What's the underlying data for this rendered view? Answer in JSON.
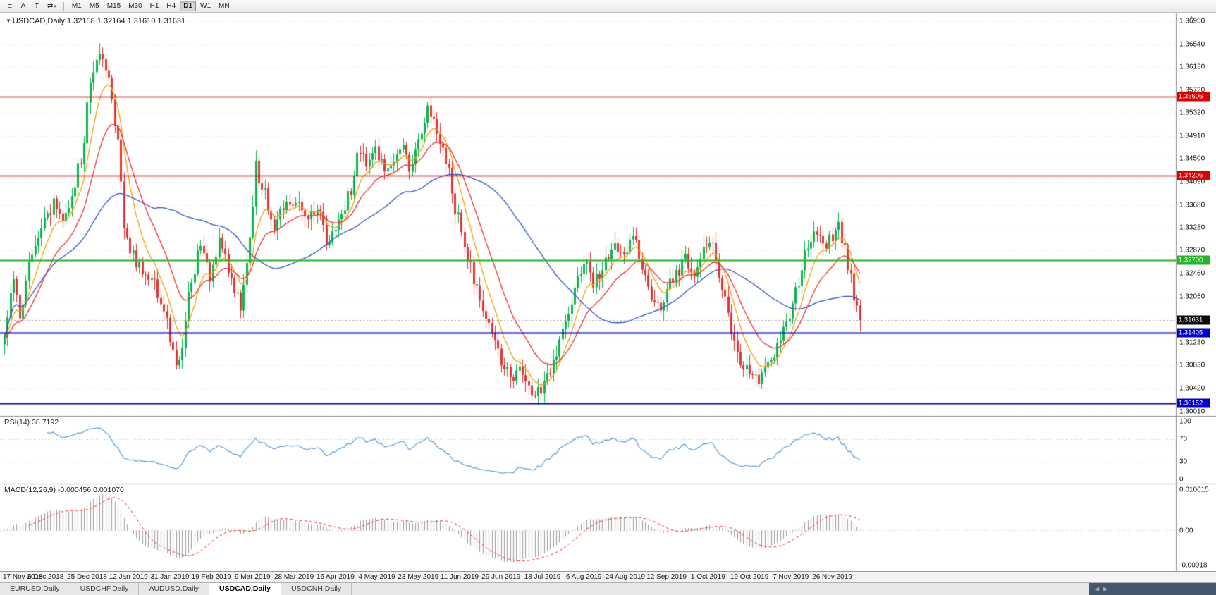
{
  "toolbar": {
    "menu_icon": "≡",
    "tools": [
      {
        "id": "annotations",
        "label": "A"
      },
      {
        "id": "text",
        "label": "T"
      },
      {
        "id": "crosshair",
        "label": "⇄",
        "caret": "▾"
      }
    ],
    "timeframes": [
      "M1",
      "M5",
      "M15",
      "M30",
      "H1",
      "H4",
      "D1",
      "W1",
      "MN"
    ],
    "active_timeframe": "D1"
  },
  "chart": {
    "marker": "▼",
    "symbol_label": "USDCAD,Daily",
    "ohlc_text": "1.32158 1.32164 1.31610 1.31631",
    "price_axis_ticks": [
      "1.36950",
      "1.36540",
      "1.36130",
      "1.35720",
      "1.35320",
      "1.34910",
      "1.34500",
      "1.34090",
      "1.33680",
      "1.33280",
      "1.32870",
      "1.32460",
      "1.32050",
      "1.31640",
      "1.31230",
      "1.30830",
      "1.30420",
      "1.30010"
    ],
    "levels": [
      {
        "price": 1.35606,
        "label": "1.35606",
        "color": "#dd0000",
        "width": 1.6
      },
      {
        "price": 1.34206,
        "label": "1.34206",
        "color": "#dd0000",
        "width": 1.6
      },
      {
        "price": 1.327,
        "label": "1.32700",
        "color": "#23b523",
        "width": 2
      },
      {
        "price": 1.31405,
        "label": "1.31405",
        "color": "#0000cc",
        "width": 2
      },
      {
        "price": 1.30152,
        "label": "1.30152",
        "color": "#0000cc",
        "width": 2
      }
    ],
    "current_price": {
      "price": 1.31631,
      "label": "1.31631",
      "tag_color": "#0a0a0a",
      "line_color": "#aaaaaa"
    }
  },
  "chart_data": {
    "type": "candlestick",
    "symbol": "USDCAD",
    "timeframe": "Daily",
    "bar_count": 280,
    "price_range": [
      1.2993,
      1.371
    ],
    "up_color": "#0db350",
    "down_color": "#e23434",
    "close_path_anchors": [
      [
        0,
        1.314
      ],
      [
        3,
        1.323
      ],
      [
        5,
        1.317
      ],
      [
        8,
        1.326
      ],
      [
        11,
        1.331
      ],
      [
        13,
        1.3335
      ],
      [
        16,
        1.337
      ],
      [
        19,
        1.334
      ],
      [
        22,
        1.3385
      ],
      [
        25,
        1.345
      ],
      [
        28,
        1.359
      ],
      [
        31,
        1.3635
      ],
      [
        33,
        1.3615
      ],
      [
        36,
        1.352
      ],
      [
        40,
        1.33
      ],
      [
        44,
        1.326
      ],
      [
        48,
        1.324
      ],
      [
        52,
        1.318
      ],
      [
        55,
        1.31
      ],
      [
        57,
        1.3085
      ],
      [
        61,
        1.323
      ],
      [
        64,
        1.3295
      ],
      [
        67,
        1.324
      ],
      [
        70,
        1.3305
      ],
      [
        74,
        1.3235
      ],
      [
        77,
        1.319
      ],
      [
        80,
        1.33
      ],
      [
        82,
        1.344
      ],
      [
        84,
        1.3395
      ],
      [
        88,
        1.3335
      ],
      [
        92,
        1.3365
      ],
      [
        95,
        1.337
      ],
      [
        98,
        1.3345
      ],
      [
        102,
        1.3355
      ],
      [
        105,
        1.331
      ],
      [
        108,
        1.332
      ],
      [
        112,
        1.338
      ],
      [
        116,
        1.3465
      ],
      [
        119,
        1.344
      ],
      [
        121,
        1.3465
      ],
      [
        125,
        1.3425
      ],
      [
        129,
        1.3475
      ],
      [
        132,
        1.344
      ],
      [
        135,
        1.348
      ],
      [
        138,
        1.354
      ],
      [
        141,
        1.35
      ],
      [
        144,
        1.345
      ],
      [
        147,
        1.336
      ],
      [
        149,
        1.333
      ],
      [
        151,
        1.3275
      ],
      [
        154,
        1.3215
      ],
      [
        157,
        1.3165
      ],
      [
        160,
        1.3125
      ],
      [
        162,
        1.309
      ],
      [
        165,
        1.3065
      ],
      [
        168,
        1.3075
      ],
      [
        171,
        1.3035
      ],
      [
        173,
        1.3025
      ],
      [
        175,
        1.3045
      ],
      [
        178,
        1.3065
      ],
      [
        181,
        1.3125
      ],
      [
        184,
        1.3185
      ],
      [
        187,
        1.3235
      ],
      [
        189,
        1.3275
      ],
      [
        192,
        1.3225
      ],
      [
        195,
        1.3255
      ],
      [
        198,
        1.329
      ],
      [
        202,
        1.328
      ],
      [
        205,
        1.3305
      ],
      [
        208,
        1.326
      ],
      [
        211,
        1.3205
      ],
      [
        214,
        1.3185
      ],
      [
        216,
        1.3225
      ],
      [
        219,
        1.3245
      ],
      [
        222,
        1.3275
      ],
      [
        225,
        1.324
      ],
      [
        228,
        1.3285
      ],
      [
        230,
        1.331
      ],
      [
        232,
        1.327
      ],
      [
        235,
        1.3195
      ],
      [
        238,
        1.3125
      ],
      [
        241,
        1.3085
      ],
      [
        243,
        1.3065
      ],
      [
        246,
        1.3055
      ],
      [
        249,
        1.3085
      ],
      [
        252,
        1.3115
      ],
      [
        256,
        1.3165
      ],
      [
        259,
        1.3235
      ],
      [
        262,
        1.33
      ],
      [
        265,
        1.332
      ],
      [
        267,
        1.329
      ],
      [
        270,
        1.3315
      ],
      [
        272,
        1.333
      ],
      [
        274,
        1.329
      ],
      [
        276,
        1.324
      ],
      [
        277,
        1.3195
      ],
      [
        279,
        1.31631
      ]
    ],
    "moving_averages": [
      {
        "name": "fast",
        "type": "ema",
        "period": 8,
        "color": "#f5a300"
      },
      {
        "name": "medium",
        "type": "ema",
        "period": 18,
        "color": "#ee3030"
      },
      {
        "name": "slow",
        "type": "sma",
        "period": 50,
        "color": "#3353cc"
      }
    ]
  },
  "rsi": {
    "label": "RSI(14) 38.7192",
    "period": 14,
    "value": "38.7192",
    "range": [
      0,
      100
    ],
    "guide_levels": [
      70,
      30
    ],
    "axis_ticks": [
      {
        "v": 100,
        "label": "100"
      },
      {
        "v": 70,
        "label": "70"
      },
      {
        "v": 30,
        "label": "30"
      },
      {
        "v": 0,
        "label": "0"
      }
    ],
    "line_color": "#5b9bd5"
  },
  "macd": {
    "label": "MACD(12,26,9) -0.000456 0.001070",
    "main_value": "-0.000456",
    "signal_value": "0.001070",
    "range": [
      -0.00918,
      0.010615
    ],
    "axis_ticks": [
      {
        "pos": "top",
        "label": "0.010615"
      },
      {
        "pos": "zero",
        "label": "0.00"
      },
      {
        "pos": "bottom",
        "label": "-0.00918"
      }
    ],
    "histogram_color": "#9c9c9c",
    "signal_color": "#ff2828"
  },
  "date_axis": {
    "labels": [
      "17 Nov 2018",
      "6 Dec 2018",
      "25 Dec 2018",
      "12 Jan 2019",
      "31 Jan 2019",
      "19 Feb 2019",
      "9 Mar 2019",
      "28 Mar 2019",
      "16 Apr 2019",
      "4 May 2019",
      "23 May 2019",
      "11 Jun 2019",
      "29 Jun 2019",
      "18 Jul 2019",
      "6 Aug 2019",
      "24 Aug 2019",
      "12 Sep 2019",
      "1 Oct 2019",
      "19 Oct 2019",
      "7 Nov 2019",
      "26 Nov 2019"
    ]
  },
  "tabs": {
    "items": [
      {
        "label": "EURUSD,Daily",
        "active": false
      },
      {
        "label": "USDCHF,Daily",
        "active": false
      },
      {
        "label": "AUDUSD,Daily",
        "active": false
      },
      {
        "label": "USDCAD,Daily",
        "active": true
      },
      {
        "label": "USDCNH,Daily",
        "active": false
      }
    ]
  }
}
